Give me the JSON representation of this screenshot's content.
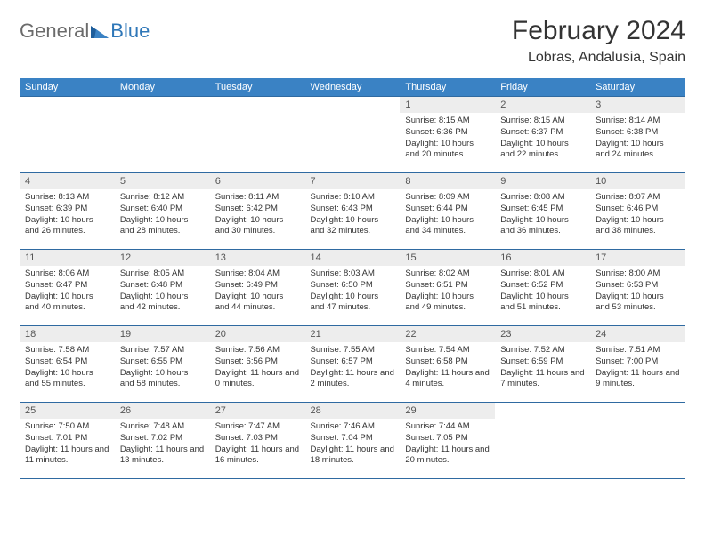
{
  "logo": {
    "general": "General",
    "blue": "Blue"
  },
  "title": "February 2024",
  "location": "Lobras, Andalusia, Spain",
  "colors": {
    "header_bg": "#3a82c4",
    "header_text": "#ffffff",
    "daynum_bg": "#ededed",
    "row_border": "#2f6aa1",
    "logo_gray": "#6b6b6b",
    "logo_blue": "#2f77b8"
  },
  "daynames": [
    "Sunday",
    "Monday",
    "Tuesday",
    "Wednesday",
    "Thursday",
    "Friday",
    "Saturday"
  ],
  "weeks": [
    [
      {
        "n": "",
        "sr": "",
        "ss": "",
        "dl": "",
        "empty": true
      },
      {
        "n": "",
        "sr": "",
        "ss": "",
        "dl": "",
        "empty": true
      },
      {
        "n": "",
        "sr": "",
        "ss": "",
        "dl": "",
        "empty": true
      },
      {
        "n": "",
        "sr": "",
        "ss": "",
        "dl": "",
        "empty": true
      },
      {
        "n": "1",
        "sr": "Sunrise: 8:15 AM",
        "ss": "Sunset: 6:36 PM",
        "dl": "Daylight: 10 hours and 20 minutes."
      },
      {
        "n": "2",
        "sr": "Sunrise: 8:15 AM",
        "ss": "Sunset: 6:37 PM",
        "dl": "Daylight: 10 hours and 22 minutes."
      },
      {
        "n": "3",
        "sr": "Sunrise: 8:14 AM",
        "ss": "Sunset: 6:38 PM",
        "dl": "Daylight: 10 hours and 24 minutes."
      }
    ],
    [
      {
        "n": "4",
        "sr": "Sunrise: 8:13 AM",
        "ss": "Sunset: 6:39 PM",
        "dl": "Daylight: 10 hours and 26 minutes."
      },
      {
        "n": "5",
        "sr": "Sunrise: 8:12 AM",
        "ss": "Sunset: 6:40 PM",
        "dl": "Daylight: 10 hours and 28 minutes."
      },
      {
        "n": "6",
        "sr": "Sunrise: 8:11 AM",
        "ss": "Sunset: 6:42 PM",
        "dl": "Daylight: 10 hours and 30 minutes."
      },
      {
        "n": "7",
        "sr": "Sunrise: 8:10 AM",
        "ss": "Sunset: 6:43 PM",
        "dl": "Daylight: 10 hours and 32 minutes."
      },
      {
        "n": "8",
        "sr": "Sunrise: 8:09 AM",
        "ss": "Sunset: 6:44 PM",
        "dl": "Daylight: 10 hours and 34 minutes."
      },
      {
        "n": "9",
        "sr": "Sunrise: 8:08 AM",
        "ss": "Sunset: 6:45 PM",
        "dl": "Daylight: 10 hours and 36 minutes."
      },
      {
        "n": "10",
        "sr": "Sunrise: 8:07 AM",
        "ss": "Sunset: 6:46 PM",
        "dl": "Daylight: 10 hours and 38 minutes."
      }
    ],
    [
      {
        "n": "11",
        "sr": "Sunrise: 8:06 AM",
        "ss": "Sunset: 6:47 PM",
        "dl": "Daylight: 10 hours and 40 minutes."
      },
      {
        "n": "12",
        "sr": "Sunrise: 8:05 AM",
        "ss": "Sunset: 6:48 PM",
        "dl": "Daylight: 10 hours and 42 minutes."
      },
      {
        "n": "13",
        "sr": "Sunrise: 8:04 AM",
        "ss": "Sunset: 6:49 PM",
        "dl": "Daylight: 10 hours and 44 minutes."
      },
      {
        "n": "14",
        "sr": "Sunrise: 8:03 AM",
        "ss": "Sunset: 6:50 PM",
        "dl": "Daylight: 10 hours and 47 minutes."
      },
      {
        "n": "15",
        "sr": "Sunrise: 8:02 AM",
        "ss": "Sunset: 6:51 PM",
        "dl": "Daylight: 10 hours and 49 minutes."
      },
      {
        "n": "16",
        "sr": "Sunrise: 8:01 AM",
        "ss": "Sunset: 6:52 PM",
        "dl": "Daylight: 10 hours and 51 minutes."
      },
      {
        "n": "17",
        "sr": "Sunrise: 8:00 AM",
        "ss": "Sunset: 6:53 PM",
        "dl": "Daylight: 10 hours and 53 minutes."
      }
    ],
    [
      {
        "n": "18",
        "sr": "Sunrise: 7:58 AM",
        "ss": "Sunset: 6:54 PM",
        "dl": "Daylight: 10 hours and 55 minutes."
      },
      {
        "n": "19",
        "sr": "Sunrise: 7:57 AM",
        "ss": "Sunset: 6:55 PM",
        "dl": "Daylight: 10 hours and 58 minutes."
      },
      {
        "n": "20",
        "sr": "Sunrise: 7:56 AM",
        "ss": "Sunset: 6:56 PM",
        "dl": "Daylight: 11 hours and 0 minutes."
      },
      {
        "n": "21",
        "sr": "Sunrise: 7:55 AM",
        "ss": "Sunset: 6:57 PM",
        "dl": "Daylight: 11 hours and 2 minutes."
      },
      {
        "n": "22",
        "sr": "Sunrise: 7:54 AM",
        "ss": "Sunset: 6:58 PM",
        "dl": "Daylight: 11 hours and 4 minutes."
      },
      {
        "n": "23",
        "sr": "Sunrise: 7:52 AM",
        "ss": "Sunset: 6:59 PM",
        "dl": "Daylight: 11 hours and 7 minutes."
      },
      {
        "n": "24",
        "sr": "Sunrise: 7:51 AM",
        "ss": "Sunset: 7:00 PM",
        "dl": "Daylight: 11 hours and 9 minutes."
      }
    ],
    [
      {
        "n": "25",
        "sr": "Sunrise: 7:50 AM",
        "ss": "Sunset: 7:01 PM",
        "dl": "Daylight: 11 hours and 11 minutes."
      },
      {
        "n": "26",
        "sr": "Sunrise: 7:48 AM",
        "ss": "Sunset: 7:02 PM",
        "dl": "Daylight: 11 hours and 13 minutes."
      },
      {
        "n": "27",
        "sr": "Sunrise: 7:47 AM",
        "ss": "Sunset: 7:03 PM",
        "dl": "Daylight: 11 hours and 16 minutes."
      },
      {
        "n": "28",
        "sr": "Sunrise: 7:46 AM",
        "ss": "Sunset: 7:04 PM",
        "dl": "Daylight: 11 hours and 18 minutes."
      },
      {
        "n": "29",
        "sr": "Sunrise: 7:44 AM",
        "ss": "Sunset: 7:05 PM",
        "dl": "Daylight: 11 hours and 20 minutes."
      },
      {
        "n": "",
        "sr": "",
        "ss": "",
        "dl": "",
        "empty": true
      },
      {
        "n": "",
        "sr": "",
        "ss": "",
        "dl": "",
        "empty": true
      }
    ]
  ]
}
